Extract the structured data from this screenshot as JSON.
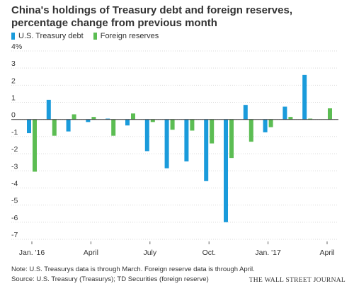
{
  "chart_data": {
    "type": "bar",
    "title": "China's holdings of Treasury debt and foreign reserves, percentage change from previous month",
    "xlabel": "",
    "ylabel": "",
    "y_unit_label": "4%",
    "ylim": [
      -7,
      4
    ],
    "yticks": [
      4,
      3,
      2,
      1,
      0,
      -1,
      -2,
      -3,
      -4,
      -5,
      -6,
      -7
    ],
    "ytick_labels": [
      "4%",
      "3",
      "2",
      "1",
      "0",
      "-1",
      "-2",
      "-3",
      "-4",
      "-5",
      "-6",
      "-7"
    ],
    "grid": true,
    "legend_position": "top-left",
    "categories": [
      "Jan 2016",
      "Feb 2016",
      "Mar 2016",
      "Apr 2016",
      "May 2016",
      "Jun 2016",
      "Jul 2016",
      "Aug 2016",
      "Sep 2016",
      "Oct 2016",
      "Nov 2016",
      "Dec 2016",
      "Jan 2017",
      "Feb 2017",
      "Mar 2017",
      "Apr 2017"
    ],
    "x_tick_labels": [
      {
        "label": "Jan. '16",
        "index": 0
      },
      {
        "label": "April",
        "index": 3
      },
      {
        "label": "July",
        "index": 6
      },
      {
        "label": "Oct.",
        "index": 9
      },
      {
        "label": "Jan. '17",
        "index": 12
      },
      {
        "label": "April",
        "index": 15
      }
    ],
    "series": [
      {
        "name": "U.S. Treasury debt",
        "color": "#1a9bdb",
        "values": [
          -0.8,
          1.15,
          -0.7,
          -0.15,
          0.05,
          -0.35,
          -1.85,
          -2.85,
          -2.45,
          -3.6,
          -6.0,
          0.85,
          -0.75,
          0.75,
          2.6,
          null
        ]
      },
      {
        "name": "Foreign reserves",
        "color": "#5cbd53",
        "values": [
          -3.05,
          -0.95,
          0.3,
          0.15,
          -0.95,
          0.35,
          -0.15,
          -0.6,
          -0.65,
          -1.4,
          -2.25,
          -1.3,
          -0.45,
          0.15,
          0.05,
          0.65
        ]
      }
    ]
  },
  "footer": {
    "note": "Note: U.S. Treasurys data is through March. Foreign reserve data is through April.",
    "source": "Source: U.S. Treasury (Treasurys); TD Securities (foreign reserve)",
    "brand": "THE WALL STREET JOURNAL"
  }
}
